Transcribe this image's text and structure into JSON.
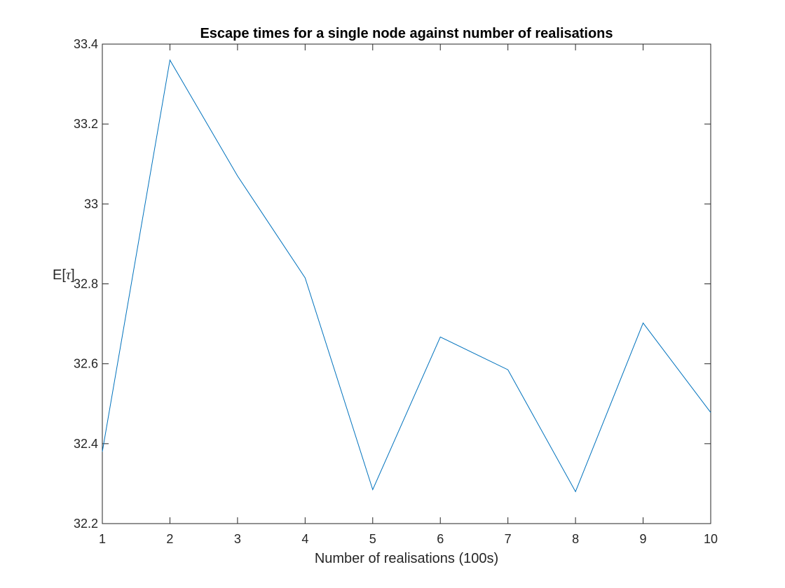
{
  "chart_data": {
    "type": "line",
    "title": "Escape times for a single node against number of realisations",
    "xlabel": "Number of realisations (100s)",
    "ylabel_prefix": "E[",
    "ylabel_symbol": "τ",
    "ylabel_suffix": "]",
    "xlim": [
      1,
      10
    ],
    "ylim": [
      32.2,
      33.4
    ],
    "xticks": [
      1,
      2,
      3,
      4,
      5,
      6,
      7,
      8,
      9,
      10
    ],
    "yticks": [
      32.2,
      32.4,
      32.6,
      32.8,
      33,
      33.2,
      33.4
    ],
    "grid": false,
    "series": [
      {
        "color": "#0072BD",
        "x": [
          1,
          2,
          3,
          4,
          5,
          6,
          7,
          8,
          9,
          10
        ],
        "y": [
          32.38,
          33.36,
          33.07,
          32.815,
          32.285,
          32.667,
          32.585,
          32.28,
          32.702,
          32.478
        ]
      }
    ]
  }
}
